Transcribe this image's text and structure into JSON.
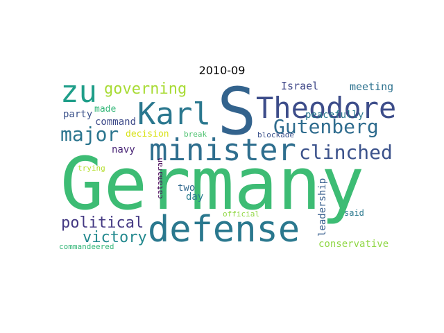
{
  "title": "2010-09",
  "words": [
    {
      "text": "Germany",
      "color": "#3dbc74"
    },
    {
      "text": "S",
      "color": "#33638d"
    },
    {
      "text": "defense",
      "color": "#2a788e"
    },
    {
      "text": "minister",
      "color": "#2e6e8e"
    },
    {
      "text": "Theodore",
      "color": "#3d4d8a"
    },
    {
      "text": "Karl",
      "color": "#2a778e"
    },
    {
      "text": "zu",
      "color": "#1f9e89"
    },
    {
      "text": "Gutenberg",
      "color": "#2f6c8e"
    },
    {
      "text": "clinched",
      "color": "#3b528b"
    },
    {
      "text": "major",
      "color": "#2b758e"
    },
    {
      "text": "governing",
      "color": "#a8db34"
    },
    {
      "text": "political",
      "color": "#443983"
    },
    {
      "text": "victory",
      "color": "#23898e"
    },
    {
      "text": "Israel",
      "color": "#3f4788"
    },
    {
      "text": "meeting",
      "color": "#2c718e"
    },
    {
      "text": "party",
      "color": "#3b528b"
    },
    {
      "text": "made",
      "color": "#35b779"
    },
    {
      "text": "command",
      "color": "#3e4a89"
    },
    {
      "text": "decision",
      "color": "#d8e219"
    },
    {
      "text": "break",
      "color": "#4ac16d"
    },
    {
      "text": "blockade",
      "color": "#3b528b"
    },
    {
      "text": "peacefully",
      "color": "#2a788e"
    },
    {
      "text": "navy",
      "color": "#482475"
    },
    {
      "text": "trying",
      "color": "#b5de2b"
    },
    {
      "text": "catamaran",
      "color": "#440154"
    },
    {
      "text": "two",
      "color": "#31688e"
    },
    {
      "text": "day",
      "color": "#287c8e"
    },
    {
      "text": "official",
      "color": "#90d743"
    },
    {
      "text": "leadership",
      "color": "#365d8d"
    },
    {
      "text": "said",
      "color": "#2a788e"
    },
    {
      "text": "conservative",
      "color": "#8fd744"
    },
    {
      "text": "commandeered",
      "color": "#35b779"
    }
  ]
}
